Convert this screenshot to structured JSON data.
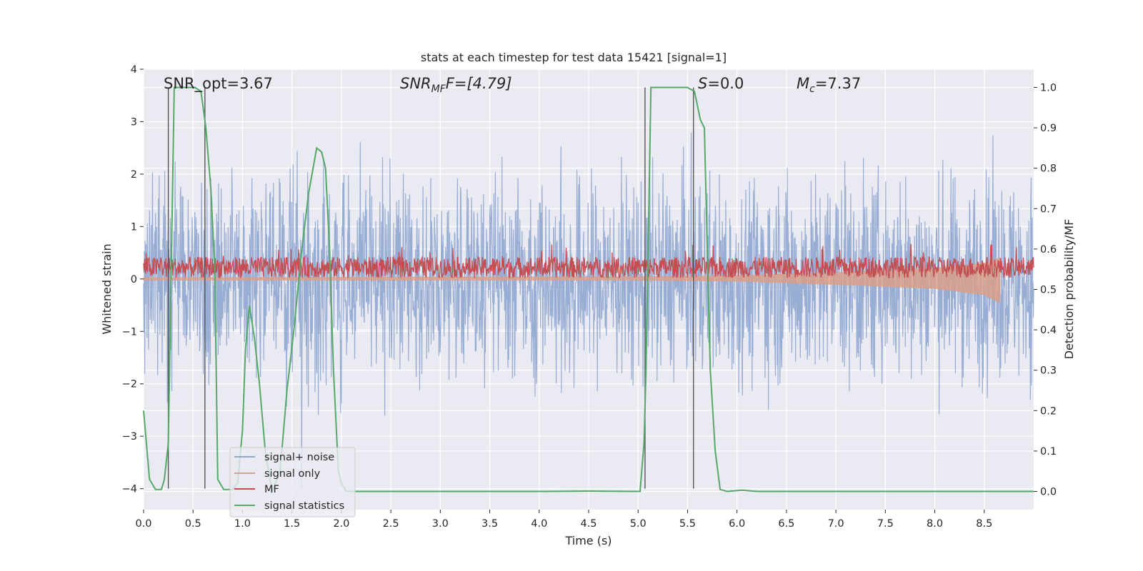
{
  "chart_data": {
    "type": "line",
    "title": "stats at each timestep for test data 15421 [signal=1]",
    "xlabel": "Time (s)",
    "ylabel_left": "Whitened strain",
    "ylabel_right": "Detection probability/MF",
    "xlim": [
      0,
      9.0
    ],
    "ylim_left": [
      -4.4,
      4.0
    ],
    "ylim_right": [
      -0.045,
      1.045
    ],
    "x_ticks": [
      "0.0",
      "0.5",
      "1.0",
      "1.5",
      "2.0",
      "2.5",
      "3.0",
      "3.5",
      "4.0",
      "4.5",
      "5.0",
      "5.5",
      "6.0",
      "6.5",
      "7.0",
      "7.5",
      "8.0",
      "8.5"
    ],
    "y_ticks_left": [
      "4",
      "3",
      "2",
      "1",
      "0",
      "−1",
      "−2",
      "−3",
      "−4"
    ],
    "y_ticks_right": [
      "1.0",
      "0.9",
      "0.8",
      "0.7",
      "0.6",
      "0.5",
      "0.4",
      "0.3",
      "0.2",
      "0.1",
      "0.0"
    ],
    "grid": true,
    "legend_position": "lower-left",
    "annotations": {
      "snr_opt": "SNR_opt=3.67",
      "snr_mf_sym": "SNR",
      "snr_mf_sub": "MF",
      "snr_mf_rest": "F=[4.79]",
      "s_sym": "S",
      "s_rest": "=0.0",
      "mc_sym": "M",
      "mc_sub": "c",
      "mc_rest": "=7.37"
    },
    "series": [
      {
        "name": "signal+ noise",
        "color": "#8fa6cf",
        "description_values": {
          "x_range": [
            0,
            9.0
          ],
          "typical_amplitude": [
            -2.5,
            2.5
          ],
          "peak_max": 3.65,
          "peak_min": -4.0
        }
      },
      {
        "name": "signal only",
        "color": "#dd9d86",
        "x": [
          0,
          5.0,
          6.0,
          7.0,
          8.0,
          8.5,
          8.66
        ],
        "envelope_upper": [
          0.02,
          0.04,
          0.06,
          0.12,
          0.2,
          0.3,
          0.4
        ],
        "envelope_lower": [
          -0.02,
          -0.02,
          -0.04,
          -0.1,
          -0.18,
          -0.3,
          -0.45
        ]
      },
      {
        "name": "MF",
        "color": "#c44e52",
        "baseline": 0.22,
        "amplitude": 0.4
      },
      {
        "name": "signal statistics",
        "color": "#55a868",
        "x": [
          0,
          0.06,
          0.12,
          0.18,
          0.21,
          0.25,
          0.31,
          0.37,
          0.45,
          0.52,
          0.58,
          0.63,
          0.68,
          0.72,
          0.75,
          0.81,
          0.9,
          0.95,
          1.0,
          1.03,
          1.07,
          1.12,
          1.17,
          1.23,
          1.3,
          1.38,
          1.45,
          1.52,
          1.6,
          1.67,
          1.75,
          1.8,
          1.84,
          1.88,
          1.92,
          1.97,
          2.0,
          2.05,
          2.1,
          3.0,
          4.0,
          4.5,
          5.0,
          5.02,
          5.06,
          5.08,
          5.13,
          5.2,
          5.3,
          5.4,
          5.5,
          5.57,
          5.63,
          5.67,
          5.7,
          5.73,
          5.78,
          5.83,
          5.9,
          6.05,
          6.2,
          7.0,
          8.0,
          9.0
        ],
        "y": [
          0.2,
          0.03,
          0.005,
          0.005,
          0.03,
          0.12,
          1.0,
          1.0,
          1.0,
          1.0,
          0.99,
          0.9,
          0.75,
          0.55,
          0.03,
          0.005,
          0.005,
          0.02,
          0.15,
          0.35,
          0.46,
          0.38,
          0.27,
          0.1,
          0.0,
          0.05,
          0.25,
          0.4,
          0.6,
          0.74,
          0.85,
          0.84,
          0.8,
          0.6,
          0.3,
          0.05,
          0.02,
          0.0,
          0.0,
          0.0,
          0.0,
          0.001,
          0.0,
          0.0,
          0.12,
          0.3,
          1.0,
          1.0,
          1.0,
          1.0,
          1.0,
          0.99,
          0.92,
          0.9,
          0.6,
          0.3,
          0.1,
          0.005,
          0.0,
          0.003,
          0.0,
          0.0,
          0.0,
          0.0
        ]
      },
      {
        "name": "event_markers",
        "color": "#555555",
        "x": [
          0.25,
          0.62,
          5.07,
          5.56
        ],
        "y_top": 0.1,
        "y_bottom": -4.0
      }
    ]
  }
}
